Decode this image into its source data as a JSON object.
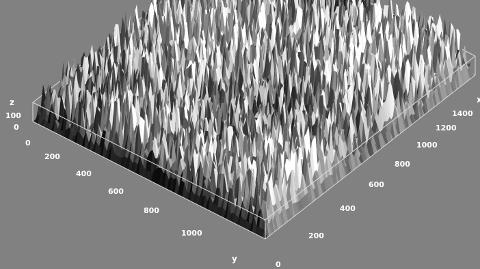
{
  "chart_data": {
    "type": "surface3d",
    "title": "",
    "colors": {
      "background": "#818181",
      "box_lines": "#dcdcdc",
      "surface_low": "#0c0c0c",
      "surface_high": "#ffffff",
      "tick_text": "#ffffff"
    },
    "axes": {
      "x": {
        "label": "x",
        "ticks": [
          "200",
          "400",
          "600",
          "800",
          "1000",
          "1200",
          "1400"
        ],
        "range": [
          0,
          1500
        ]
      },
      "y": {
        "label": "y",
        "ticks": [
          "0",
          "200",
          "400",
          "600",
          "800",
          "1000"
        ],
        "range": [
          0,
          1150
        ]
      },
      "z": {
        "label": "z",
        "ticks": [
          "0",
          "100"
        ],
        "range": [
          0,
          200
        ]
      }
    },
    "box": "wireframe bounding box shown",
    "grid": false,
    "legend": "none",
    "surface_description_values": {
      "peak_height_range": [
        0,
        200
      ],
      "texture": "dense random rough peaks"
    }
  }
}
